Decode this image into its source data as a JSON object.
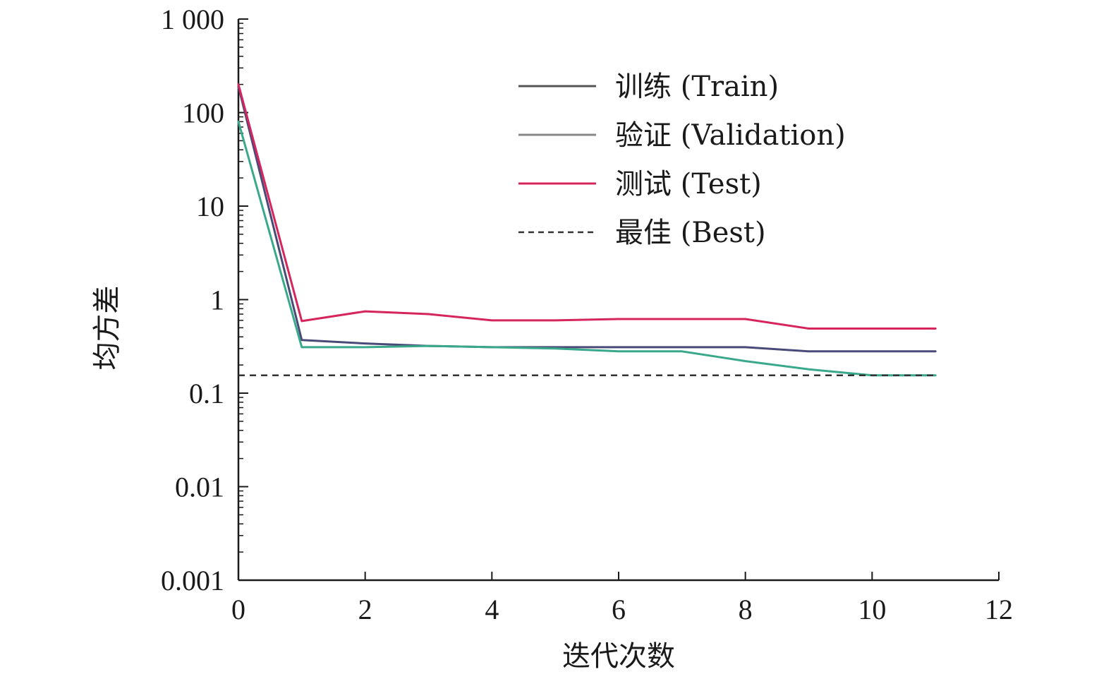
{
  "chart_data": {
    "type": "line",
    "title": "",
    "xlabel": "迭代次数",
    "ylabel": "均方差",
    "x_scale": "linear",
    "y_scale": "log",
    "xlim": [
      0,
      12
    ],
    "ylim": [
      0.001,
      1000
    ],
    "x_ticks": [
      0,
      2,
      4,
      6,
      8,
      10,
      12
    ],
    "x_tick_labels": [
      "0",
      "2",
      "4",
      "6",
      "8",
      "10",
      "12"
    ],
    "y_ticks": [
      0.001,
      0.01,
      0.1,
      1,
      10,
      100,
      1000
    ],
    "y_tick_labels": [
      "0.001",
      "0.01",
      "0.1",
      "1",
      "10",
      "100",
      "1 000"
    ],
    "grid": false,
    "legend_position": "top-right",
    "x": [
      0,
      1,
      2,
      3,
      4,
      5,
      6,
      7,
      8,
      9,
      10,
      11
    ],
    "series": [
      {
        "name": "训练 (Train)",
        "color": "#4a4a78",
        "style": "solid",
        "values": [
          190,
          0.37,
          0.34,
          0.32,
          0.31,
          0.31,
          0.31,
          0.31,
          0.31,
          0.28,
          0.28,
          0.28
        ]
      },
      {
        "name": "验证 (Validation)",
        "color": "#3aa88a",
        "style": "solid",
        "values": [
          80,
          0.31,
          0.31,
          0.32,
          0.31,
          0.3,
          0.28,
          0.28,
          0.22,
          0.18,
          0.155,
          0.155
        ]
      },
      {
        "name": "测试 (Test)",
        "color": "#d6245c",
        "style": "solid",
        "values": [
          200,
          0.59,
          0.75,
          0.7,
          0.6,
          0.6,
          0.62,
          0.62,
          0.62,
          0.49,
          0.49,
          0.49
        ]
      },
      {
        "name": "最佳 (Best)",
        "color": "#333333",
        "style": "dashed",
        "x": [
          0,
          11
        ],
        "values": [
          0.155,
          0.155
        ]
      }
    ],
    "legend_line_colors": [
      "#555555",
      "#888888",
      "#d6245c",
      "#333333"
    ]
  }
}
